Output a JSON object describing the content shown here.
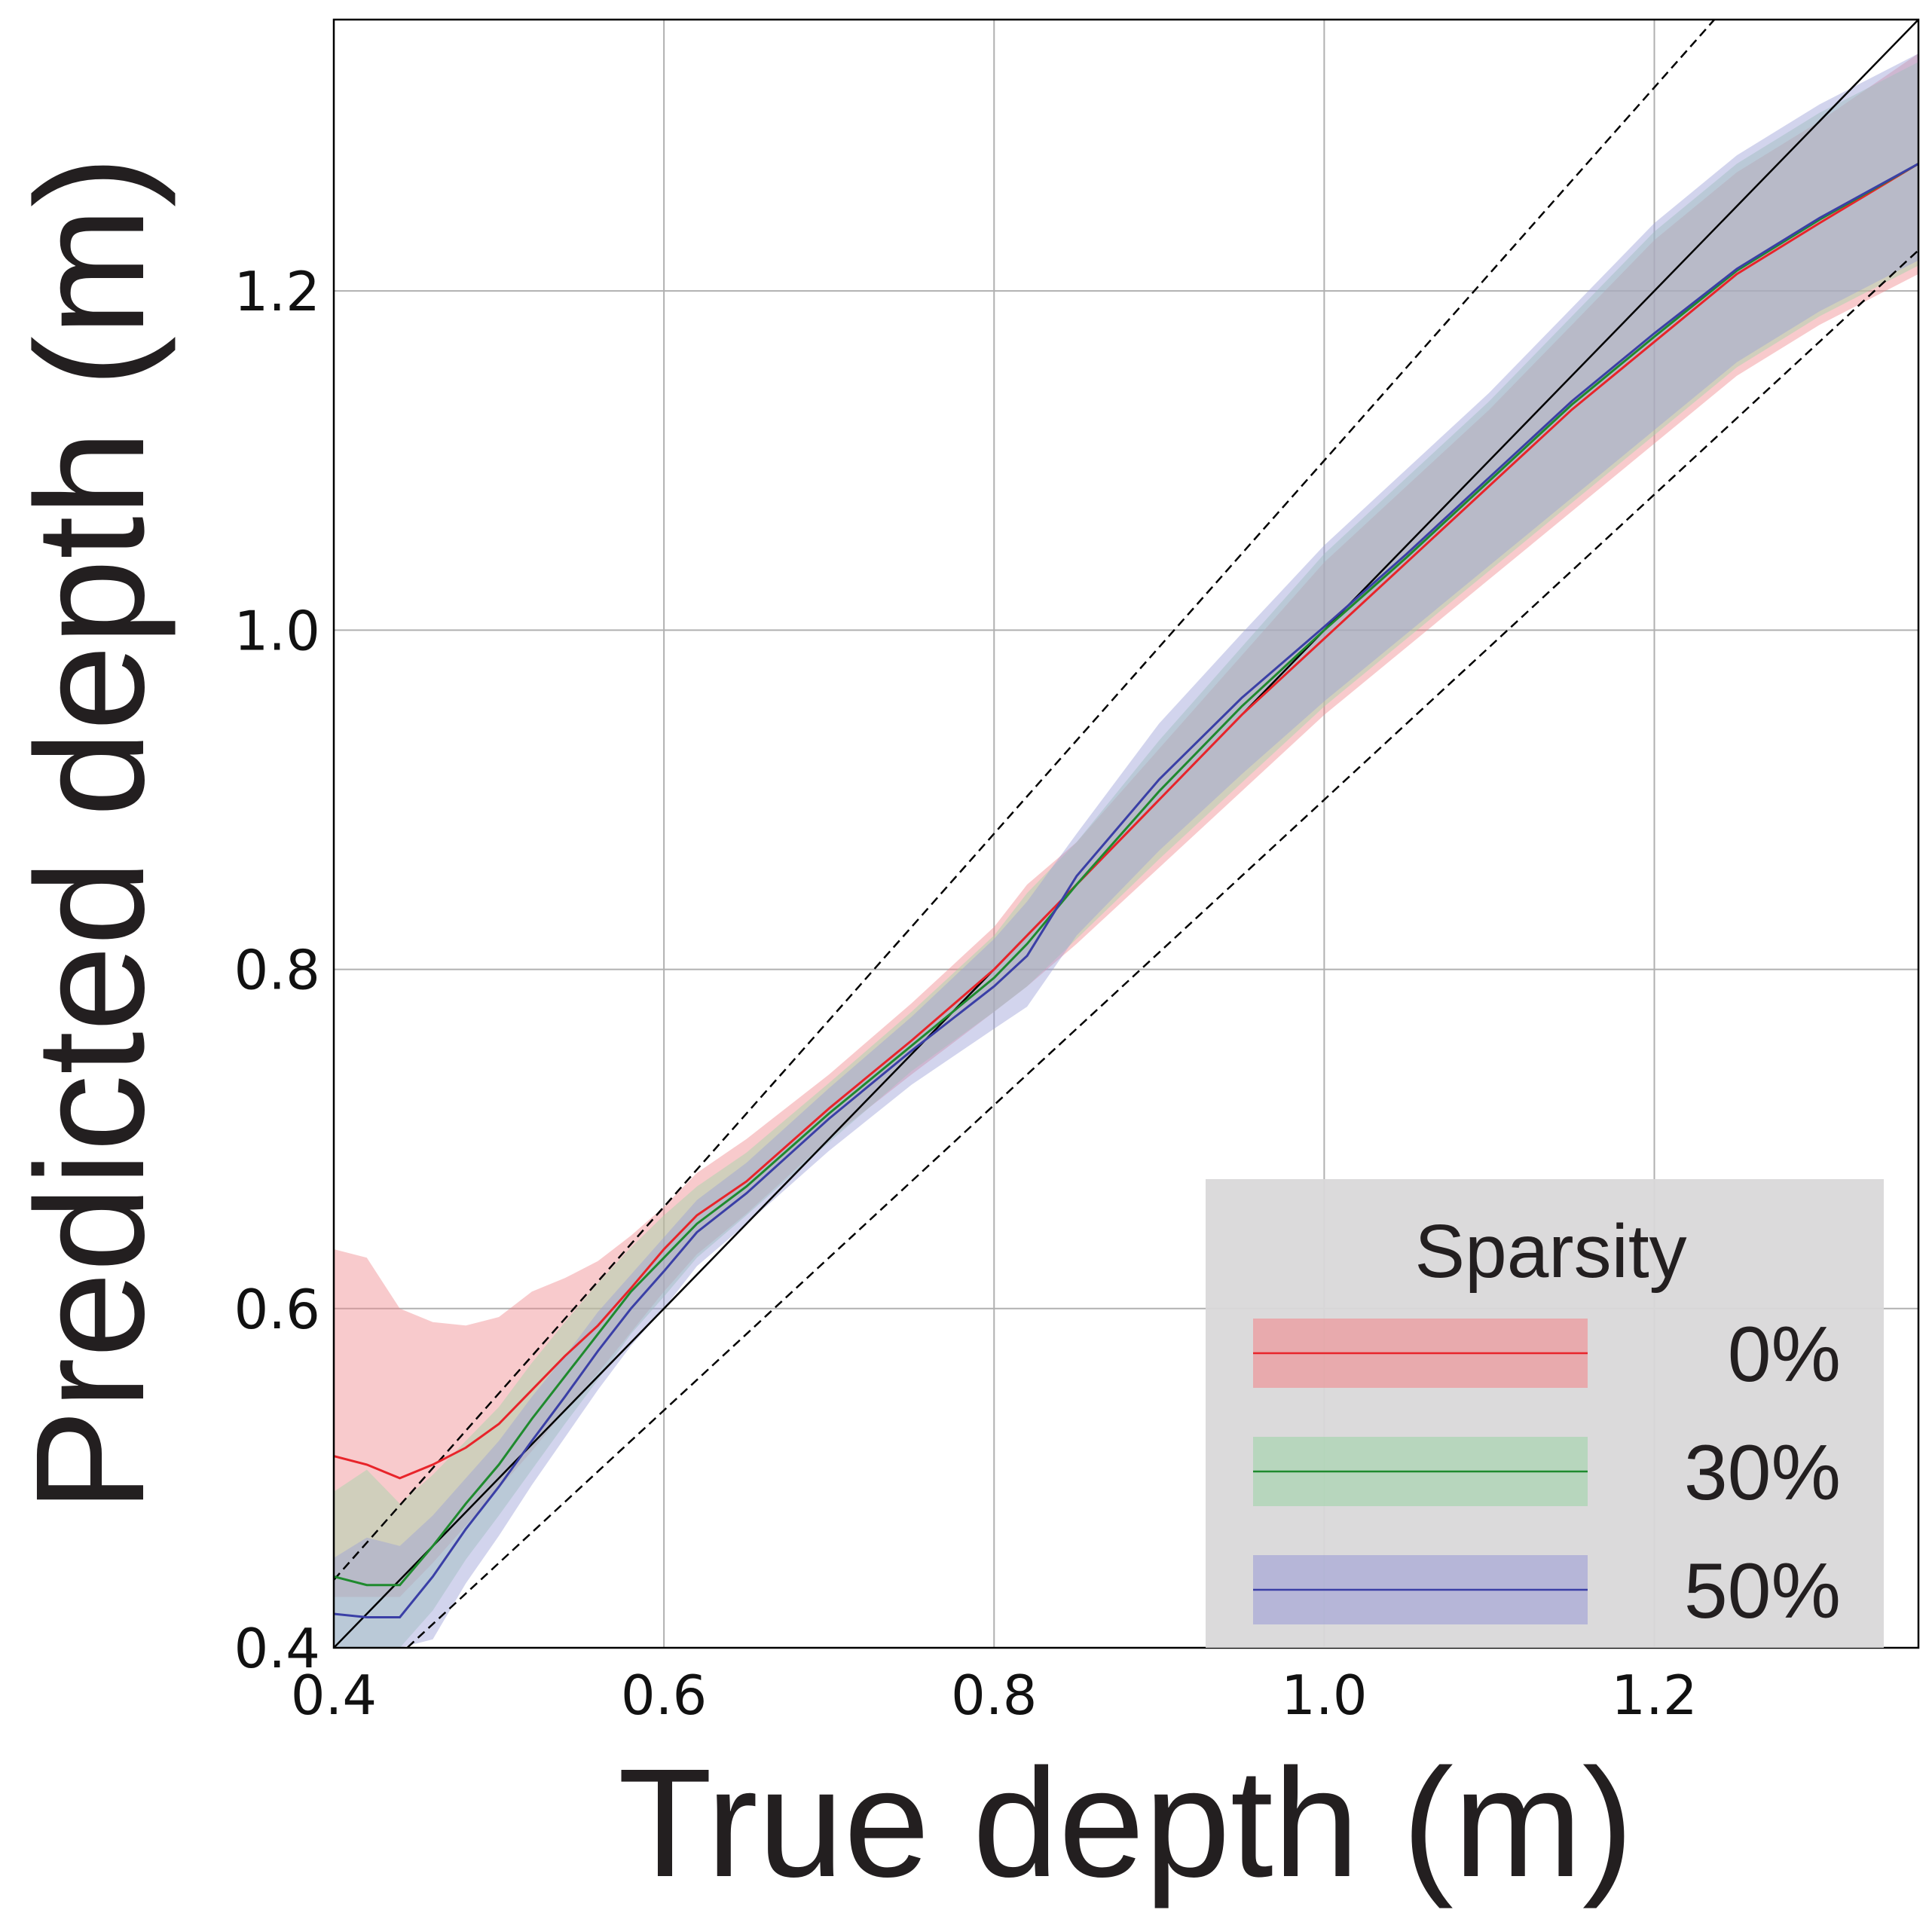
{
  "chart_data": {
    "type": "line",
    "xlabel": "True depth (m)",
    "ylabel": "Predicted depth (m)",
    "xlim": [
      0.4,
      1.36
    ],
    "ylim": [
      0.4,
      1.36
    ],
    "xticks": [
      0.4,
      0.6,
      0.8,
      1.0,
      1.2
    ],
    "xtick_labels": [
      "0.4",
      "0.6",
      "0.8",
      "1.0",
      "1.2"
    ],
    "yticks": [
      0.4,
      0.6,
      0.8,
      1.0,
      1.2
    ],
    "ytick_labels": [
      "0.4",
      "0.6",
      "0.8",
      "1.0",
      "1.2"
    ],
    "grid": true,
    "legend": {
      "title": "Sparsity",
      "placement": "lower-right"
    },
    "reference_lines": [
      {
        "style": "solid",
        "color": "#000000",
        "slope": 1.0
      },
      {
        "style": "dashed",
        "color": "#000000",
        "slope": 1.1
      },
      {
        "style": "dashed",
        "color": "#000000",
        "slope": 0.9
      }
    ],
    "series": [
      {
        "name": "0%",
        "line_color": "#e8242a",
        "band_color": "#f08a8e",
        "x": [
          0.4,
          0.42,
          0.44,
          0.46,
          0.48,
          0.5,
          0.52,
          0.54,
          0.56,
          0.58,
          0.6,
          0.62,
          0.65,
          0.7,
          0.75,
          0.8,
          0.82,
          0.85,
          0.9,
          0.95,
          1.0,
          1.05,
          1.1,
          1.15,
          1.2,
          1.25,
          1.3,
          1.36
        ],
        "y": [
          0.513,
          0.508,
          0.5,
          0.508,
          0.518,
          0.532,
          0.552,
          0.572,
          0.59,
          0.612,
          0.635,
          0.655,
          0.675,
          0.718,
          0.758,
          0.8,
          0.82,
          0.85,
          0.9,
          0.95,
          0.995,
          1.04,
          1.085,
          1.13,
          1.17,
          1.21,
          1.24,
          1.275
        ],
        "lower": [
          0.43,
          0.43,
          0.43,
          0.45,
          0.472,
          0.494,
          0.516,
          0.54,
          0.562,
          0.586,
          0.61,
          0.632,
          0.656,
          0.7,
          0.738,
          0.775,
          0.79,
          0.815,
          0.86,
          0.905,
          0.95,
          0.99,
          1.03,
          1.07,
          1.11,
          1.15,
          1.18,
          1.21
        ],
        "upper": [
          0.635,
          0.63,
          0.6,
          0.592,
          0.59,
          0.595,
          0.61,
          0.618,
          0.628,
          0.643,
          0.66,
          0.68,
          0.7,
          0.738,
          0.78,
          0.825,
          0.85,
          0.875,
          0.93,
          0.985,
          1.04,
          1.085,
          1.13,
          1.18,
          1.23,
          1.27,
          1.3,
          1.34
        ]
      },
      {
        "name": "30%",
        "line_color": "#1f8a2e",
        "band_color": "#9fd4a8",
        "x": [
          0.4,
          0.42,
          0.44,
          0.46,
          0.48,
          0.5,
          0.52,
          0.54,
          0.56,
          0.58,
          0.6,
          0.62,
          0.65,
          0.7,
          0.75,
          0.8,
          0.82,
          0.85,
          0.9,
          0.95,
          1.0,
          1.05,
          1.1,
          1.15,
          1.2,
          1.25,
          1.3,
          1.36
        ],
        "y": [
          0.442,
          0.437,
          0.437,
          0.46,
          0.485,
          0.508,
          0.535,
          0.56,
          0.585,
          0.61,
          0.63,
          0.65,
          0.672,
          0.715,
          0.755,
          0.795,
          0.815,
          0.85,
          0.905,
          0.955,
          1.0,
          1.043,
          1.088,
          1.133,
          1.173,
          1.212,
          1.242,
          1.275
        ],
        "lower": [
          0.4,
          0.4,
          0.4,
          0.422,
          0.452,
          0.478,
          0.505,
          0.532,
          0.558,
          0.585,
          0.607,
          0.63,
          0.655,
          0.698,
          0.74,
          0.775,
          0.79,
          0.818,
          0.865,
          0.91,
          0.955,
          0.995,
          1.035,
          1.075,
          1.115,
          1.155,
          1.185,
          1.215
        ],
        "upper": [
          0.492,
          0.505,
          0.485,
          0.502,
          0.522,
          0.542,
          0.568,
          0.592,
          0.615,
          0.636,
          0.655,
          0.672,
          0.692,
          0.733,
          0.775,
          0.82,
          0.845,
          0.875,
          0.935,
          0.99,
          1.045,
          1.09,
          1.135,
          1.185,
          1.235,
          1.275,
          1.305,
          1.335
        ]
      },
      {
        "name": "50%",
        "line_color": "#3a3fa6",
        "band_color": "#9c9fd6",
        "x": [
          0.4,
          0.42,
          0.44,
          0.46,
          0.48,
          0.5,
          0.52,
          0.54,
          0.56,
          0.58,
          0.6,
          0.62,
          0.65,
          0.7,
          0.75,
          0.8,
          0.82,
          0.85,
          0.9,
          0.95,
          1.0,
          1.05,
          1.1,
          1.15,
          1.2,
          1.25,
          1.3,
          1.36
        ],
        "y": [
          0.42,
          0.418,
          0.418,
          0.442,
          0.47,
          0.495,
          0.522,
          0.548,
          0.575,
          0.6,
          0.622,
          0.645,
          0.668,
          0.712,
          0.752,
          0.79,
          0.808,
          0.855,
          0.912,
          0.96,
          1.002,
          1.045,
          1.09,
          1.135,
          1.175,
          1.213,
          1.243,
          1.275
        ],
        "lower": [
          0.4,
          0.4,
          0.4,
          0.405,
          0.438,
          0.466,
          0.496,
          0.524,
          0.552,
          0.578,
          0.6,
          0.625,
          0.65,
          0.693,
          0.732,
          0.765,
          0.778,
          0.82,
          0.87,
          0.915,
          0.958,
          0.998,
          1.038,
          1.078,
          1.118,
          1.158,
          1.188,
          1.218
        ],
        "upper": [
          0.453,
          0.465,
          0.46,
          0.478,
          0.5,
          0.522,
          0.548,
          0.572,
          0.598,
          0.62,
          0.642,
          0.664,
          0.686,
          0.73,
          0.772,
          0.818,
          0.84,
          0.88,
          0.945,
          0.998,
          1.05,
          1.095,
          1.14,
          1.19,
          1.24,
          1.28,
          1.31,
          1.34
        ]
      }
    ]
  }
}
